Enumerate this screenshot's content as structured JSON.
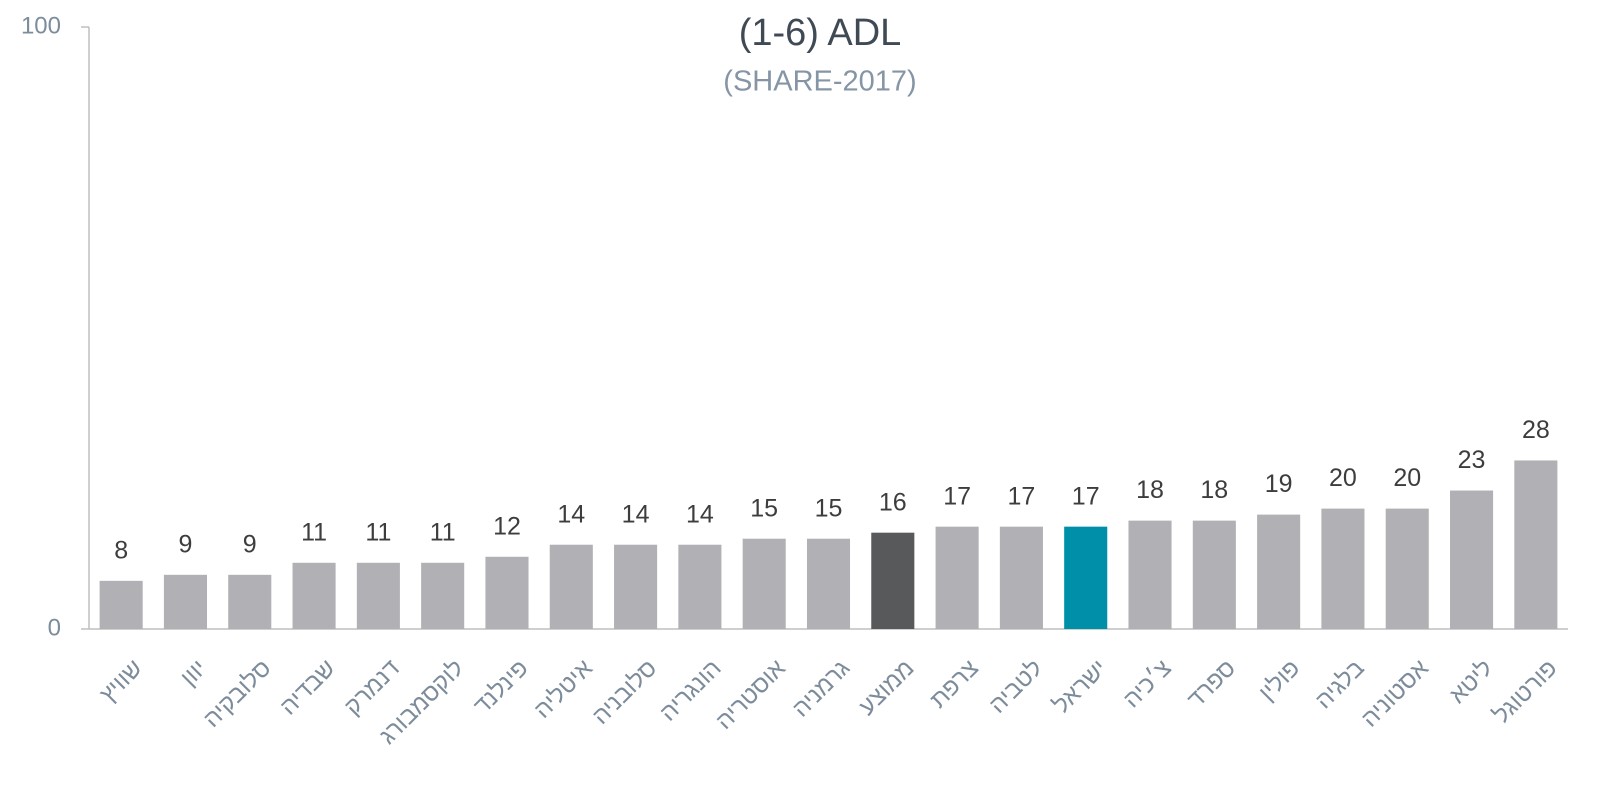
{
  "chart_data": {
    "type": "bar",
    "title": "(1-6) ADL",
    "subtitle": "(SHARE-2017)",
    "categories": [
      "שוויץ",
      "יוון",
      "סלובקיה",
      "שבדיה",
      "דנמרק",
      "לוקסמבורג",
      "פינלנד",
      "איטליה",
      "סלובניה",
      "הונגריה",
      "אוסטריה",
      "גרמניה",
      "ממוצע",
      "צרפת",
      "לטביה",
      "ישראל",
      "צ׳כיה",
      "ספרד",
      "פולין",
      "בלגיה",
      "אסטוניה",
      "ליטא",
      "פורטוגל"
    ],
    "values": [
      8,
      9,
      9,
      11,
      11,
      11,
      12,
      14,
      14,
      14,
      15,
      15,
      16,
      17,
      17,
      17,
      18,
      18,
      19,
      20,
      20,
      23,
      28
    ],
    "colors": [
      "#b1b1b5",
      "#b1b1b5",
      "#b1b1b5",
      "#b1b1b5",
      "#b1b1b5",
      "#b1b1b5",
      "#b1b1b5",
      "#b1b1b5",
      "#b1b1b5",
      "#b1b1b5",
      "#b1b1b5",
      "#b1b1b5",
      "#58595b",
      "#b1b1b5",
      "#b1b1b5",
      "#008fa8",
      "#b1b1b5",
      "#b1b1b5",
      "#b1b1b5",
      "#b1b1b5",
      "#b1b1b5",
      "#b1b1b5",
      "#b1b1b5"
    ],
    "ylim": [
      0,
      100
    ],
    "yticks": [
      0,
      100
    ],
    "grid": false
  }
}
